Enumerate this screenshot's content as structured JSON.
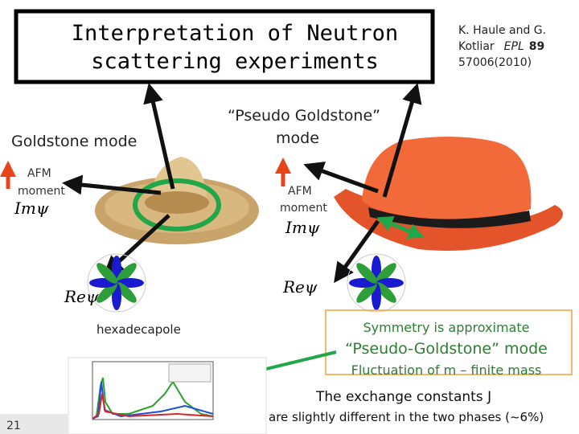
{
  "title": {
    "lines": [
      "Interpretation of Neutron",
      "scattering experiments"
    ]
  },
  "reference": {
    "lines": [
      "K. Haule and G.",
      "Kotliar"
    ],
    "journal": "EPL",
    "volume": "89",
    "pages": "57006(2010)"
  },
  "left": {
    "label": "Goldstone mode",
    "moment": [
      "AFM",
      "moment"
    ],
    "im": "Imψ",
    "re": "Reψ",
    "caption": "hexadecapole"
  },
  "right": {
    "label": [
      "“Pseudo Goldstone”",
      "mode"
    ],
    "moment": [
      "AFM",
      "moment"
    ],
    "im": "Imψ",
    "re": "Reψ"
  },
  "note": {
    "heading": "Symmetry is approximate",
    "mode": "“Pseudo-Goldstone” mode",
    "fluctuation": "Fluctuation of m – finite mass",
    "exchange": "The exchange constants J",
    "difference": "are slightly different in the two phases (~6%)"
  },
  "slide_number": "21"
}
